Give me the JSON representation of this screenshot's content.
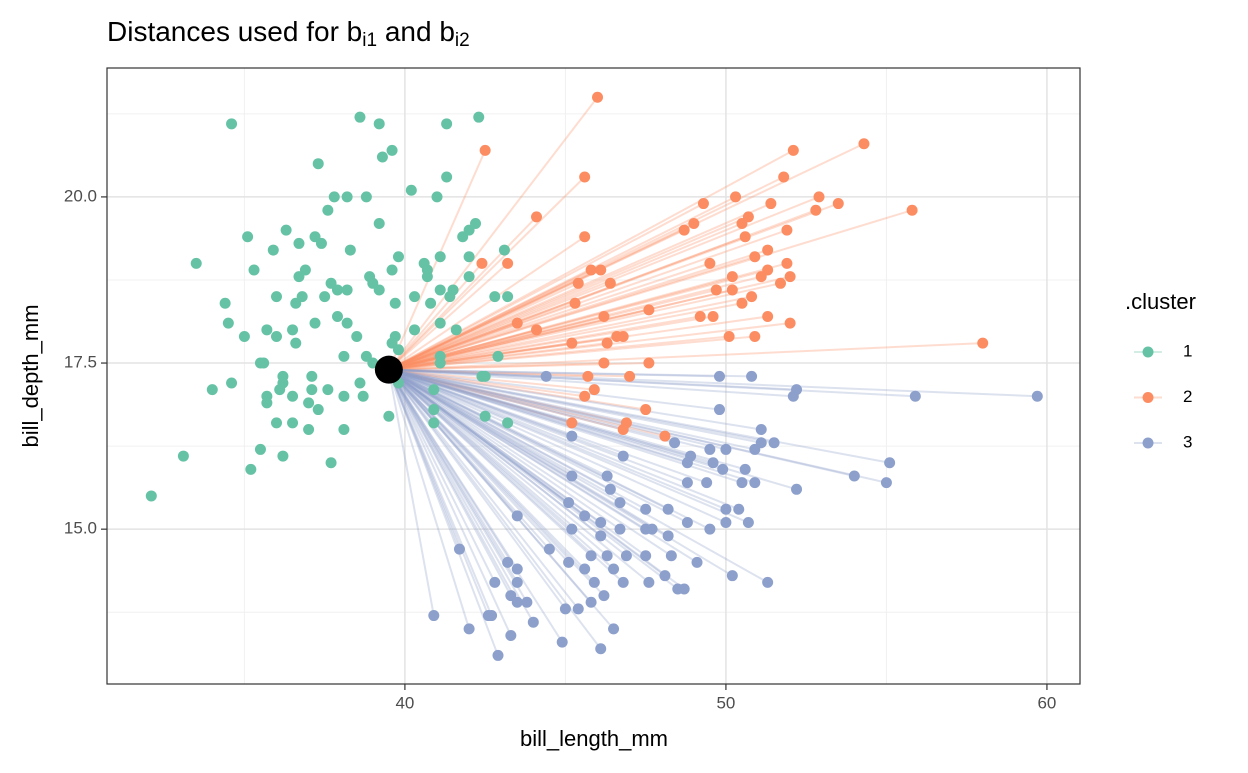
{
  "chart_data": {
    "type": "scatter",
    "title_parts": [
      "Distances used for b",
      "i1",
      " and b",
      "i2"
    ],
    "x_label": "bill_length_mm",
    "y_label": "bill_depth_mm",
    "legend_title": ".cluster",
    "xlim": [
      30.72,
      61.03
    ],
    "ylim": [
      12.67,
      21.94
    ],
    "xticks": [
      40,
      50,
      60
    ],
    "yticks": [
      {
        "value": 15,
        "label": "15.0"
      },
      17.5,
      {
        "value": 20,
        "label": "20.0"
      }
    ],
    "x_minor_grid": [
      35,
      45,
      55
    ],
    "y_minor_grid": [
      13.75,
      16.25,
      18.75,
      21.25
    ],
    "grid": true,
    "highlight": {
      "x": 39.5,
      "y": 17.4,
      "color": "#000000"
    },
    "series": [
      {
        "name": "1",
        "color": "#66c2a5",
        "connect_to_highlight": false,
        "x": [
          32.1,
          33.1,
          33.5,
          34.0,
          34.4,
          34.5,
          34.6,
          34.6,
          35.0,
          35.1,
          35.2,
          35.3,
          35.5,
          35.6,
          35.5,
          35.7,
          35.7,
          35.7,
          35.9,
          36.0,
          36.0,
          36.0,
          36.1,
          36.2,
          36.2,
          36.2,
          36.3,
          36.5,
          36.5,
          36.6,
          36.5,
          36.6,
          36.7,
          36.7,
          36.8,
          36.9,
          37.0,
          37.0,
          37.1,
          37.1,
          37.2,
          37.2,
          37.3,
          37.3,
          37.4,
          37.5,
          37.6,
          37.6,
          37.7,
          37.7,
          37.8,
          37.9,
          37.9,
          38.2,
          38.1,
          38.1,
          38.1,
          38.2,
          38.2,
          38.3,
          38.5,
          38.6,
          38.6,
          38.7,
          38.8,
          38.9,
          38.8,
          39.0,
          39.0,
          39.2,
          39.2,
          39.2,
          39.3,
          39.5,
          39.6,
          39.6,
          39.6,
          39.7,
          39.7,
          39.8,
          39.8,
          39.8,
          40.2,
          40.3,
          40.3,
          40.6,
          40.7,
          40.7,
          40.8,
          40.9,
          40.9,
          40.9,
          41.0,
          41.1,
          41.1,
          41.1,
          41.1,
          41.1,
          41.3,
          41.3,
          41.4,
          41.5,
          41.6,
          41.8,
          42.0,
          42.0,
          42.2,
          42.3,
          42.5,
          42.4,
          42.5,
          42.8,
          42.9,
          43.1,
          43.2,
          43.2,
          42.0
        ],
        "y": [
          15.5,
          16.1,
          19.0,
          17.1,
          18.4,
          18.1,
          17.2,
          21.1,
          17.9,
          19.4,
          15.9,
          18.9,
          17.5,
          17.5,
          16.2,
          17.0,
          16.9,
          18.0,
          19.2,
          16.6,
          18.5,
          17.9,
          17.1,
          17.3,
          17.2,
          16.1,
          19.5,
          18.0,
          16.6,
          17.8,
          17.0,
          18.4,
          19.3,
          18.8,
          18.5,
          18.9,
          16.5,
          16.9,
          17.1,
          17.3,
          19.4,
          18.1,
          20.5,
          16.8,
          19.3,
          18.5,
          17.1,
          19.8,
          16.0,
          18.7,
          20.0,
          18.2,
          18.6,
          18.6,
          17.6,
          17.0,
          16.5,
          20.0,
          18.1,
          19.2,
          17.9,
          17.2,
          21.2,
          17.0,
          20.0,
          18.8,
          17.6,
          18.7,
          17.5,
          19.6,
          21.1,
          18.6,
          20.6,
          16.7,
          17.8,
          20.7,
          18.9,
          18.4,
          17.9,
          17.7,
          19.1,
          17.2,
          20.1,
          18.5,
          18.0,
          19.0,
          18.9,
          18.8,
          18.4,
          17.1,
          16.6,
          16.8,
          20.0,
          18.1,
          19.1,
          18.6,
          17.6,
          17.5,
          20.3,
          21.1,
          18.5,
          18.6,
          18.0,
          19.4,
          19.1,
          19.5,
          19.6,
          21.2,
          16.7,
          17.3,
          17.3,
          18.5,
          17.6,
          19.2,
          18.5,
          16.6,
          18.8
        ]
      },
      {
        "name": "2",
        "color": "#fc8d62",
        "connect_to_highlight": true,
        "x": [
          46.0,
          42.5,
          54.3,
          52.1,
          45.6,
          51.8,
          50.3,
          52.9,
          53.5,
          52.8,
          55.8,
          49.3,
          51.4,
          44.1,
          49.0,
          50.7,
          50.5,
          48.7,
          51.9,
          45.6,
          50.6,
          51.3,
          42.4,
          49.5,
          50.9,
          51.9,
          51.3,
          45.8,
          46.1,
          50.2,
          51.1,
          52.0,
          45.4,
          51.7,
          46.4,
          49.7,
          50.2,
          50.8,
          50.5,
          45.3,
          43.5,
          46.2,
          49.2,
          49.6,
          51.3,
          52.0,
          44.1,
          47.6,
          46.6,
          46.8,
          50.1,
          50.9,
          46.3,
          45.2,
          58.0,
          47.6,
          46.2,
          45.7,
          47.0,
          45.9,
          45.6,
          47.5,
          45.2,
          46.9,
          46.8,
          48.1,
          43.2
        ],
        "y": [
          21.5,
          20.7,
          20.8,
          20.7,
          20.3,
          20.3,
          20.0,
          20.0,
          19.9,
          19.8,
          19.8,
          19.9,
          19.9,
          19.7,
          19.6,
          19.7,
          19.6,
          19.5,
          19.5,
          19.4,
          19.4,
          19.2,
          19.0,
          19.0,
          19.1,
          19.0,
          18.9,
          18.9,
          18.9,
          18.8,
          18.8,
          18.8,
          18.7,
          18.7,
          18.7,
          18.6,
          18.6,
          18.5,
          18.4,
          18.4,
          18.1,
          18.2,
          18.2,
          18.2,
          18.2,
          18.1,
          18.0,
          18.3,
          17.9,
          17.9,
          17.9,
          17.9,
          17.8,
          17.8,
          17.8,
          17.5,
          17.5,
          17.3,
          17.3,
          17.1,
          17.0,
          16.8,
          16.6,
          16.6,
          16.5,
          16.4,
          19.0
        ]
      },
      {
        "name": "3",
        "color": "#8da0cb",
        "connect_to_highlight": true,
        "x": [
          44.4,
          49.8,
          50.8,
          52.2,
          52.1,
          55.9,
          59.7,
          49.8,
          45.2,
          51.1,
          51.5,
          51.1,
          48.4,
          49.5,
          50.0,
          50.9,
          46.8,
          48.9,
          55.1,
          49.6,
          49.9,
          50.6,
          48.8,
          45.2,
          46.3,
          54.0,
          55.0,
          48.8,
          49.4,
          50.5,
          50.9,
          52.2,
          46.4,
          45.1,
          46.7,
          50.0,
          50.4,
          43.5,
          45.6,
          47.5,
          48.2,
          50.0,
          50.7,
          46.1,
          46.7,
          47.5,
          47.7,
          48.8,
          48.2,
          49.5,
          46.1,
          45.2,
          41.7,
          44.5,
          45.8,
          46.3,
          46.9,
          47.5,
          48.3,
          49.1,
          43.2,
          43.5,
          45.1,
          45.6,
          46.5,
          48.1,
          50.2,
          42.8,
          43.5,
          45.9,
          46.8,
          47.6,
          51.3,
          48.5,
          48.7,
          43.3,
          46.2,
          43.5,
          43.8,
          45.8,
          45.0,
          45.4,
          40.9,
          42.6,
          42.7,
          44.0,
          42.0,
          46.5,
          43.3,
          44.9,
          46.1,
          42.9
        ],
        "y": [
          17.3,
          17.3,
          17.3,
          17.1,
          17.0,
          17.0,
          17.0,
          16.8,
          16.4,
          16.5,
          16.3,
          16.3,
          16.3,
          16.2,
          16.2,
          16.2,
          16.1,
          16.1,
          16.0,
          16.0,
          15.9,
          15.9,
          16.0,
          15.8,
          15.8,
          15.8,
          15.7,
          15.7,
          15.7,
          15.7,
          15.7,
          15.6,
          15.6,
          15.4,
          15.4,
          15.3,
          15.3,
          15.2,
          15.2,
          15.3,
          15.3,
          15.1,
          15.1,
          15.1,
          15.0,
          15.0,
          15.0,
          15.1,
          14.9,
          15.0,
          14.9,
          15.0,
          14.7,
          14.7,
          14.6,
          14.6,
          14.6,
          14.6,
          14.6,
          14.5,
          14.5,
          14.4,
          14.5,
          14.4,
          14.4,
          14.3,
          14.3,
          14.2,
          14.2,
          14.2,
          14.2,
          14.2,
          14.2,
          14.1,
          14.1,
          14.0,
          14.0,
          13.9,
          13.9,
          13.9,
          13.8,
          13.8,
          13.7,
          13.7,
          13.7,
          13.6,
          13.5,
          13.5,
          13.4,
          13.3,
          13.2,
          13.1
        ]
      }
    ]
  }
}
